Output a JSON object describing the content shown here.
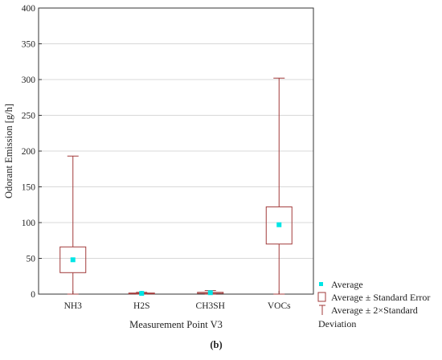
{
  "chart_data": {
    "type": "box",
    "ylabel": "Odorant Emission [g/h]",
    "xlabel": "Measurement Point V3",
    "ylim": [
      0,
      400
    ],
    "yticks": [
      0,
      50,
      100,
      150,
      200,
      250,
      300,
      350,
      400
    ],
    "grid": "horizontal",
    "legend_position": "bottom-right",
    "categories": [
      "NH3",
      "H2S",
      "CH3SH",
      "VOCs"
    ],
    "series": [
      {
        "name": "Average",
        "values": [
          48,
          1,
          2,
          97
        ]
      },
      {
        "name": "Average ± Standard Error",
        "low": [
          30,
          0.5,
          1,
          70
        ],
        "high": [
          66,
          1.5,
          2.5,
          122
        ]
      },
      {
        "name": "Average ± 2×Standard Deviation",
        "low": [
          0,
          0,
          0,
          0
        ],
        "high": [
          193,
          2.5,
          5,
          302
        ]
      }
    ],
    "colors": {
      "marker": "#00e5e5",
      "box": "#a23a3a",
      "grid": "#d8d8d8",
      "frame": "#333333"
    }
  },
  "legend": {
    "items": [
      "Average",
      "Average ± Standard Error",
      "Average ± 2×Standard",
      "Deviation"
    ]
  },
  "caption": "(b)"
}
